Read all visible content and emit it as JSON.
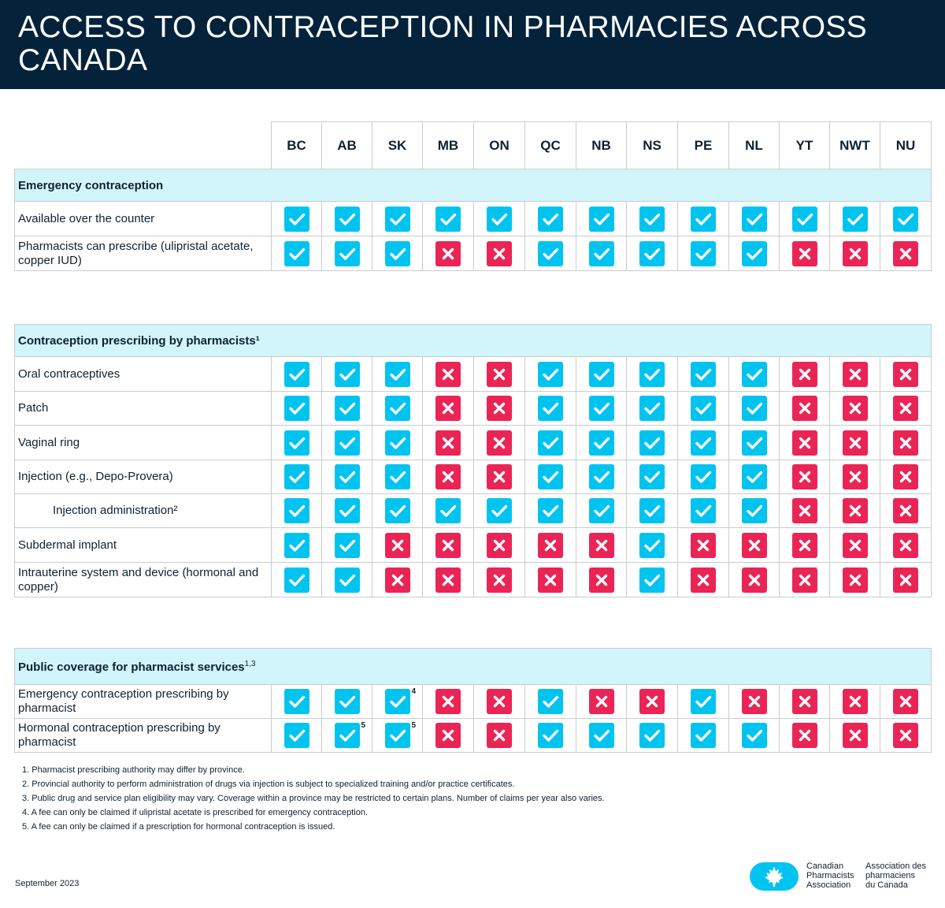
{
  "title": "ACCESS TO CONTRACEPTION IN PHARMACIES ACROSS CANADA",
  "columns": [
    "BC",
    "AB",
    "SK",
    "MB",
    "ON",
    "QC",
    "NB",
    "NS",
    "PE",
    "NL",
    "YT",
    "NWT",
    "NU"
  ],
  "sections": [
    {
      "title": "Emergency contraception",
      "title_sup": "",
      "rows": [
        {
          "label": "Available over the counter",
          "indent": false,
          "values": [
            1,
            1,
            1,
            1,
            1,
            1,
            1,
            1,
            1,
            1,
            1,
            1,
            1
          ],
          "notes": {}
        },
        {
          "label": "Pharmacists can prescribe (ulipristal acetate, copper IUD)",
          "indent": false,
          "values": [
            1,
            1,
            1,
            0,
            0,
            1,
            1,
            1,
            1,
            1,
            0,
            0,
            0
          ],
          "notes": {}
        }
      ]
    },
    {
      "title": "Contraception prescribing by pharmacists¹",
      "title_sup": "",
      "rows": [
        {
          "label": "Oral contraceptives",
          "indent": false,
          "values": [
            1,
            1,
            1,
            0,
            0,
            1,
            1,
            1,
            1,
            1,
            0,
            0,
            0
          ],
          "notes": {}
        },
        {
          "label": "Patch",
          "indent": false,
          "values": [
            1,
            1,
            1,
            0,
            0,
            1,
            1,
            1,
            1,
            1,
            0,
            0,
            0
          ],
          "notes": {}
        },
        {
          "label": "Vaginal ring",
          "indent": false,
          "values": [
            1,
            1,
            1,
            0,
            0,
            1,
            1,
            1,
            1,
            1,
            0,
            0,
            0
          ],
          "notes": {}
        },
        {
          "label": "Injection (e.g., Depo-Provera)",
          "indent": false,
          "values": [
            1,
            1,
            1,
            0,
            0,
            1,
            1,
            1,
            1,
            1,
            0,
            0,
            0
          ],
          "notes": {}
        },
        {
          "label": "Injection administration²",
          "indent": true,
          "values": [
            1,
            1,
            1,
            1,
            1,
            1,
            1,
            1,
            1,
            1,
            0,
            0,
            0
          ],
          "notes": {}
        },
        {
          "label": "Subdermal implant",
          "indent": false,
          "values": [
            1,
            1,
            0,
            0,
            0,
            0,
            0,
            1,
            0,
            0,
            0,
            0,
            0
          ],
          "notes": {}
        },
        {
          "label": "Intrauterine system and device (hormonal and copper)",
          "indent": false,
          "values": [
            1,
            1,
            0,
            0,
            0,
            0,
            0,
            1,
            0,
            0,
            0,
            0,
            0
          ],
          "notes": {}
        }
      ]
    },
    {
      "title": "Public coverage for pharmacist services",
      "title_sup": "1,3",
      "rows": [
        {
          "label": "Emergency contraception prescribing by pharmacist",
          "indent": false,
          "values": [
            1,
            1,
            1,
            0,
            0,
            1,
            0,
            0,
            1,
            0,
            0,
            0,
            0
          ],
          "notes": {
            "2": "4"
          }
        },
        {
          "label": "Hormonal contraception prescribing by pharmacist",
          "indent": false,
          "values": [
            1,
            1,
            1,
            0,
            0,
            1,
            1,
            1,
            1,
            1,
            0,
            0,
            0
          ],
          "notes": {
            "1": "5",
            "2": "5"
          }
        }
      ]
    }
  ],
  "footnotes": [
    "1.  Pharmacist prescribing authority may differ by province.",
    "2.  Provincial authority to perform administration of drugs via injection is subject to specialized training and/or practice certificates.",
    "3.  Public drug and service plan eligibility may vary. Coverage within a province may be restricted to certain plans. Number of claims per year also varies.",
    "4.  A fee can only be claimed if ulipristal acetate is prescribed for emergency contraception.",
    "5.  A fee can only be claimed if a prescription for hormonal contraception is issued."
  ],
  "date": "September 2023",
  "logo": {
    "en_line1": "Canadian",
    "en_line2": "Pharmacists",
    "en_line3": "Association",
    "fr_line1": "Association des",
    "fr_line2": "pharmaciens",
    "fr_line3": "du Canada"
  },
  "colors": {
    "yes": "#00c4ef",
    "no": "#eb2456",
    "header": "#04233a",
    "section": "#d2f4fb"
  }
}
